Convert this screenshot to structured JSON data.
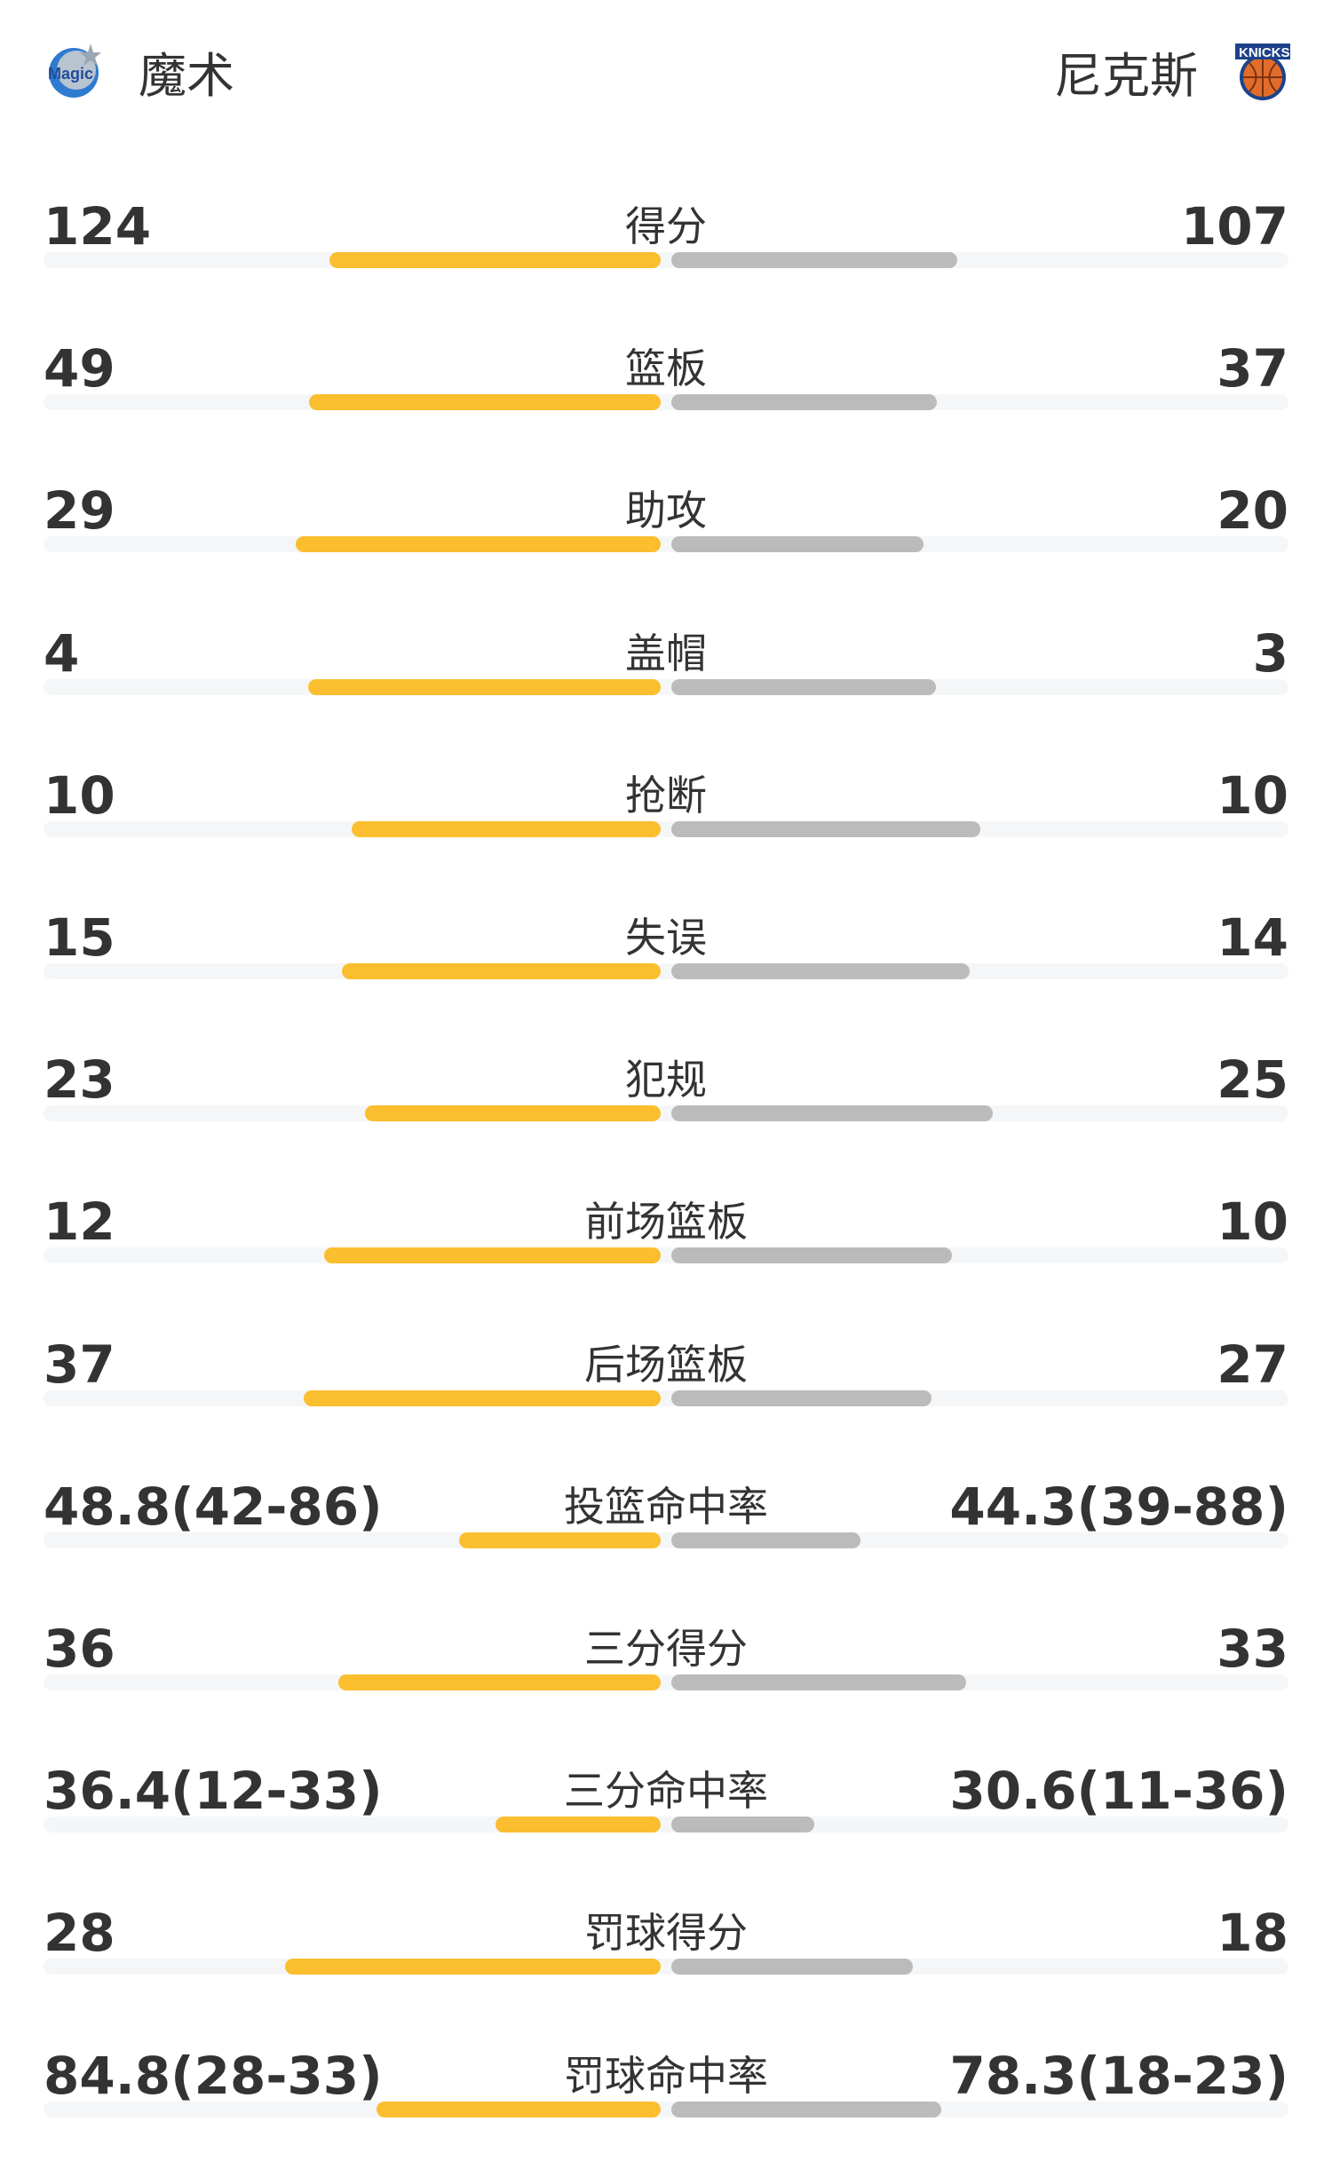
{
  "header": {
    "home_team": "魔术",
    "away_team": "尼克斯",
    "home_logo_icon": "orlando-magic-logo",
    "away_logo_icon": "new-york-knicks-logo"
  },
  "colors": {
    "home_bar": "#FBBE2E",
    "away_bar": "#BBBBBB",
    "track": "#F5F6F8",
    "text": "#333333"
  },
  "stats": [
    {
      "label": "得分",
      "home": "124",
      "away": "107",
      "home_fill": 0.537,
      "away_fill": 0.463
    },
    {
      "label": "篮板",
      "home": "49",
      "away": "37",
      "home_fill": 0.57,
      "away_fill": 0.43
    },
    {
      "label": "助攻",
      "home": "29",
      "away": "20",
      "home_fill": 0.592,
      "away_fill": 0.408
    },
    {
      "label": "盖帽",
      "home": "4",
      "away": "3",
      "home_fill": 0.571,
      "away_fill": 0.429
    },
    {
      "label": "抢断",
      "home": "10",
      "away": "10",
      "home_fill": 0.5,
      "away_fill": 0.5
    },
    {
      "label": "失误",
      "home": "15",
      "away": "14",
      "home_fill": 0.517,
      "away_fill": 0.483
    },
    {
      "label": "犯规",
      "home": "23",
      "away": "25",
      "home_fill": 0.479,
      "away_fill": 0.521
    },
    {
      "label": "前场篮板",
      "home": "12",
      "away": "10",
      "home_fill": 0.545,
      "away_fill": 0.455
    },
    {
      "label": "后场篮板",
      "home": "37",
      "away": "27",
      "home_fill": 0.578,
      "away_fill": 0.422
    },
    {
      "label": "投篮命中率",
      "home": "48.8(42-86)",
      "away": "44.3(39-88)",
      "home_fill": 0.326,
      "away_fill": 0.306
    },
    {
      "label": "三分得分",
      "home": "36",
      "away": "33",
      "home_fill": 0.522,
      "away_fill": 0.478
    },
    {
      "label": "三分命中率",
      "home": "36.4(12-33)",
      "away": "30.6(11-36)",
      "home_fill": 0.267,
      "away_fill": 0.231
    },
    {
      "label": "罚球得分",
      "home": "28",
      "away": "18",
      "home_fill": 0.609,
      "away_fill": 0.391
    },
    {
      "label": "罚球命中率",
      "home": "84.8(28-33)",
      "away": "78.3(18-23)",
      "home_fill": 0.46,
      "away_fill": 0.438
    }
  ]
}
